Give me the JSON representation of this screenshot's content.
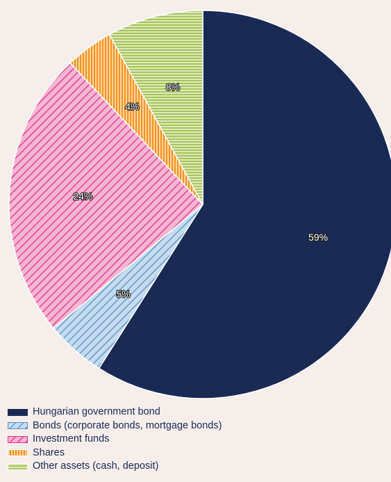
{
  "chart_data": {
    "type": "pie",
    "categories": [
      "Hungarian government bond",
      "Bonds (corporate bonds, mortgage bonds)",
      "Investment funds",
      "Shares",
      "Other assets (cash, deposit)"
    ],
    "values": [
      59,
      5,
      24,
      4,
      8
    ],
    "labels": [
      "59%",
      "5%",
      "24%",
      "4%",
      "8%"
    ],
    "start_angle_deg": 0,
    "direction": "clockwise",
    "legend_position": "bottom-left",
    "colors": {
      "Hungarian government bond": "#1b2a55",
      "Bonds (corporate bonds, mortgage bonds)": "#c5dcf0",
      "Investment funds": "#f7b6d2",
      "Shares": "#f7941d",
      "Other assets (cash, deposit)": "#a8c65a"
    },
    "patterns": {
      "Hungarian government bond": "solid",
      "Bonds (corporate bonds, mortgage bonds)": "diagonal-stripes",
      "Investment funds": "diagonal-stripes",
      "Shares": "vertical-stripes",
      "Other assets (cash, deposit)": "horizontal-stripes"
    },
    "stripe_colors": {
      "Bonds (corporate bonds, mortgage bonds)": "#5b8ec9",
      "Investment funds": "#e4328f",
      "Shares": "#ffffff",
      "Other assets (cash, deposit)": "#ffffff"
    }
  }
}
